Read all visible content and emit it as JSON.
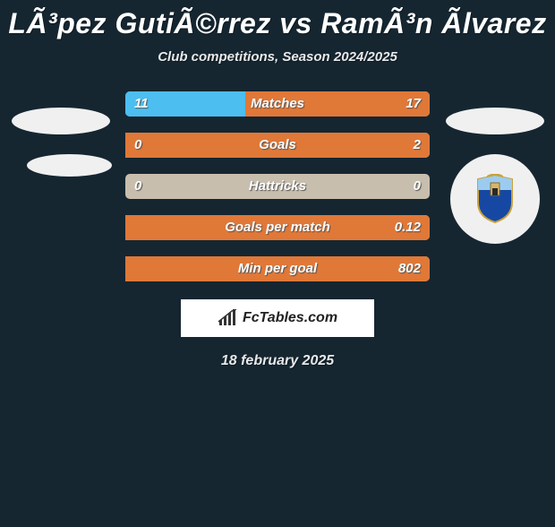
{
  "title": "LÃ³pez GutiÃ©rrez vs RamÃ³n Ãlvarez",
  "subtitle": "Club competitions, Season 2024/2025",
  "date": "18 february 2025",
  "footer": "FcTables.com",
  "colors": {
    "bg": "#152631",
    "left_fill": "#4cbef0",
    "right_fill": "#e07838",
    "bar_bg": "#c8beae"
  },
  "bars": [
    {
      "label": "Matches",
      "left": "11",
      "right": "17",
      "left_pct": 39.3,
      "right_pct": 60.7
    },
    {
      "label": "Goals",
      "left": "0",
      "right": "2",
      "left_pct": 0,
      "right_pct": 100
    },
    {
      "label": "Hattricks",
      "left": "0",
      "right": "0",
      "left_pct": 0,
      "right_pct": 0
    },
    {
      "label": "Goals per match",
      "left": "",
      "right": "0.12",
      "left_pct": 0,
      "right_pct": 100
    },
    {
      "label": "Min per goal",
      "left": "",
      "right": "802",
      "left_pct": 0,
      "right_pct": 100
    }
  ]
}
